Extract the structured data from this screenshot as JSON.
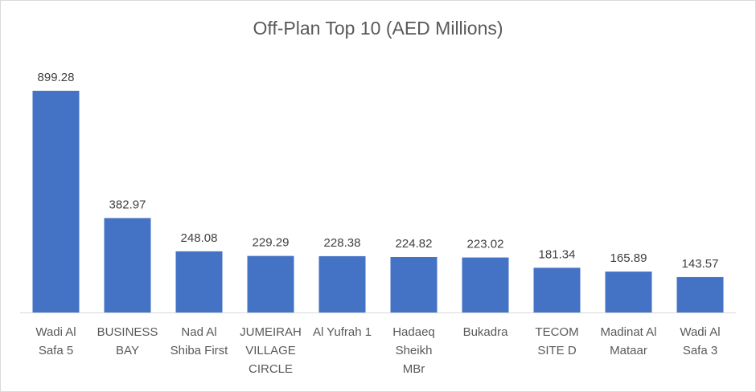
{
  "chart_data": {
    "type": "bar",
    "title": "Off-Plan Top 10 (AED Millions)",
    "categories": [
      [
        "Wadi Al",
        "Safa 5"
      ],
      [
        "BUSINESS",
        "BAY"
      ],
      [
        "Nad Al",
        "Shiba First"
      ],
      [
        "JUMEIRAH",
        "VILLAGE",
        "CIRCLE"
      ],
      [
        "Al Yufrah 1"
      ],
      [
        "Hadaeq",
        "Sheikh",
        "MBr"
      ],
      [
        "Bukadra"
      ],
      [
        "TECOM",
        "SITE D"
      ],
      [
        "Madinat Al",
        "Mataar"
      ],
      [
        "Wadi Al",
        "Safa 3"
      ]
    ],
    "values": [
      899.28,
      382.97,
      248.08,
      229.29,
      228.38,
      224.82,
      223.02,
      181.34,
      165.89,
      143.57
    ],
    "value_labels": [
      "899.28",
      "382.97",
      "248.08",
      "229.29",
      "228.38",
      "224.82",
      "223.02",
      "181.34",
      "165.89",
      "143.57"
    ],
    "xlabel": "",
    "ylabel": "",
    "ylim": [
      0,
      1000
    ],
    "grid": false,
    "legend": "none",
    "bar_color": "#4472c4"
  }
}
